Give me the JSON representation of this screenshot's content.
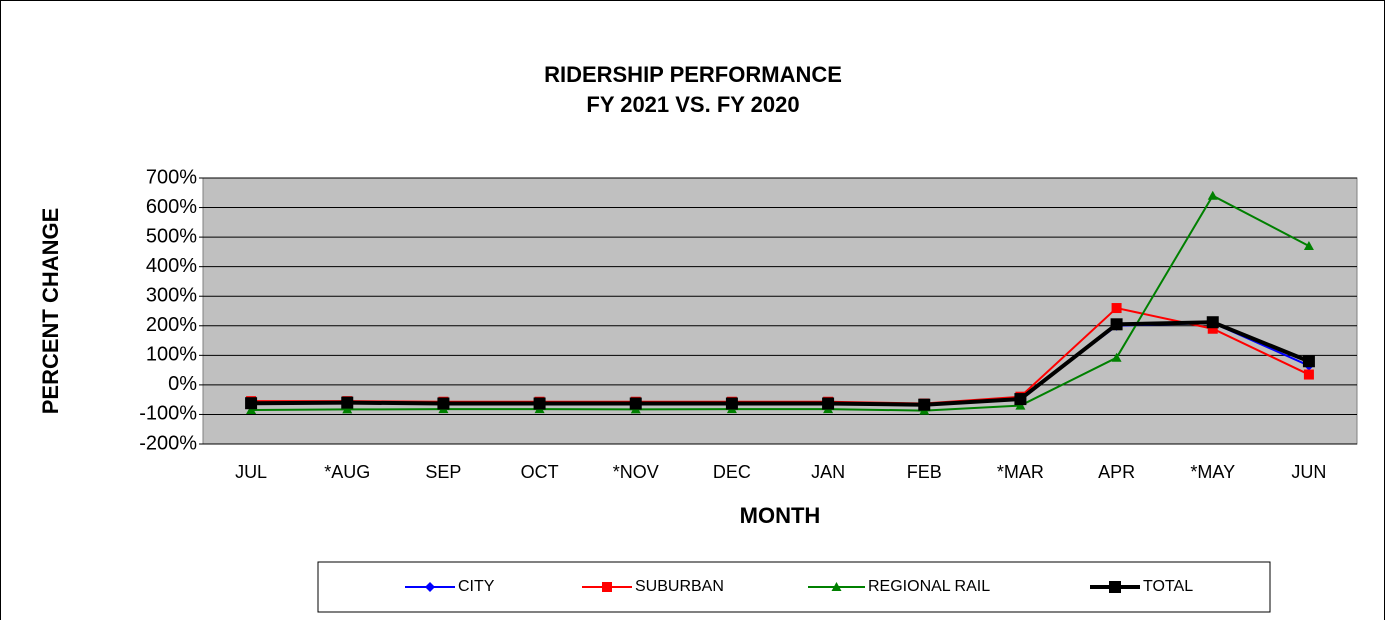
{
  "chart_data": {
    "type": "line",
    "title": "RIDERSHIP PERFORMANCE",
    "subtitle": "FY 2021 VS. FY 2020",
    "y_label": "PERCENT CHANGE",
    "x_label": "MONTH",
    "categories": [
      "JUL",
      "*AUG",
      "SEP",
      "OCT",
      "*NOV",
      "DEC",
      "JAN",
      "FEB",
      "*MAR",
      "APR",
      "*MAY",
      "JUN"
    ],
    "series": [
      {
        "name": "CITY",
        "color": "#0000ff",
        "marker": "diamond",
        "width": 2,
        "values": [
          -60,
          -58,
          -60,
          -60,
          -60,
          -60,
          -61,
          -66,
          -45,
          200,
          210,
          65
        ]
      },
      {
        "name": "SUBURBAN",
        "color": "#ff0000",
        "marker": "square",
        "width": 2,
        "values": [
          -55,
          -55,
          -57,
          -57,
          -57,
          -57,
          -57,
          -63,
          -40,
          260,
          190,
          35
        ]
      },
      {
        "name": "REGIONAL RAIL",
        "color": "#008000",
        "marker": "triangle",
        "width": 2,
        "values": [
          -85,
          -83,
          -82,
          -82,
          -83,
          -82,
          -82,
          -87,
          -70,
          92,
          640,
          470
        ]
      },
      {
        "name": "TOTAL",
        "color": "#000000",
        "marker": "square",
        "width": 4,
        "values": [
          -62,
          -60,
          -63,
          -63,
          -63,
          -63,
          -63,
          -67,
          -48,
          205,
          212,
          80
        ]
      }
    ],
    "ylim": [
      -200,
      700
    ],
    "yticks": [
      {
        "value": -200,
        "label": "-200%"
      },
      {
        "value": -100,
        "label": "-100%"
      },
      {
        "value": 0,
        "label": "0%"
      },
      {
        "value": 100,
        "label": "100%"
      },
      {
        "value": 200,
        "label": "200%"
      },
      {
        "value": 300,
        "label": "300%"
      },
      {
        "value": 400,
        "label": "400%"
      },
      {
        "value": 500,
        "label": "500%"
      },
      {
        "value": 600,
        "label": "600%"
      },
      {
        "value": 700,
        "label": "700%"
      }
    ],
    "grid": true,
    "plot_background": "#c0c0c0",
    "legend": "bottom"
  }
}
